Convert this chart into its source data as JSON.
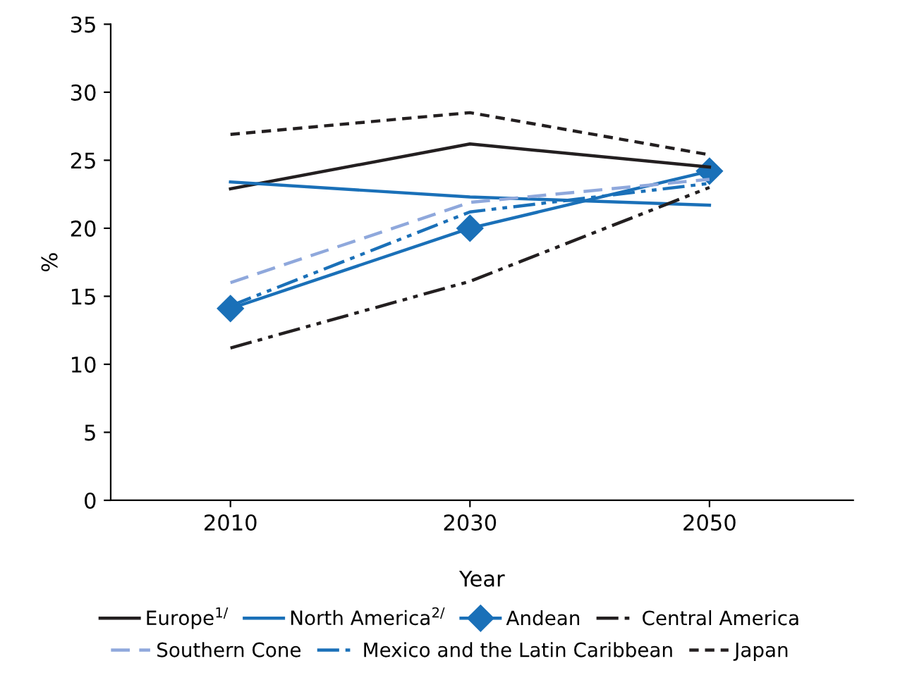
{
  "chart_data": {
    "type": "line",
    "xlabel": "Year",
    "ylabel": "%",
    "categories": [
      "2010",
      "2030",
      "2050"
    ],
    "ylim": [
      0,
      35
    ],
    "yticks": [
      0,
      5,
      10,
      15,
      20,
      25,
      30,
      35
    ],
    "grid": false,
    "legend": "bottom",
    "series": [
      {
        "name": "Europe$^{1/}$",
        "color": "#231f20",
        "line_style": "solid",
        "values": [
          22.9,
          26.2,
          24.5
        ]
      },
      {
        "name": "North America$^{2/}$",
        "color": "#1a70b8",
        "line_style": "solid",
        "values": [
          23.4,
          22.3,
          21.7
        ]
      },
      {
        "name": "Andean",
        "color": "#1a70b8",
        "line_style": "solid",
        "marker": "diamond",
        "values": [
          14.1,
          20.0,
          24.2
        ]
      },
      {
        "name": "Central America",
        "color": "#231f20",
        "line_style": "dashdot",
        "values": [
          11.2,
          16.1,
          23.0
        ]
      },
      {
        "name": "Southern Cone",
        "color": "#8fa8dc",
        "line_style": "dashed",
        "values": [
          16.0,
          21.9,
          23.6
        ]
      },
      {
        "name": "Mexico and the Latin Caribbean",
        "color": "#1a70b8",
        "line_style": "dashdot",
        "values": [
          14.3,
          21.2,
          23.3
        ]
      },
      {
        "name": "Japan",
        "color": "#231f20",
        "line_style": "dotted",
        "values": [
          26.9,
          28.5,
          25.4
        ]
      }
    ]
  }
}
